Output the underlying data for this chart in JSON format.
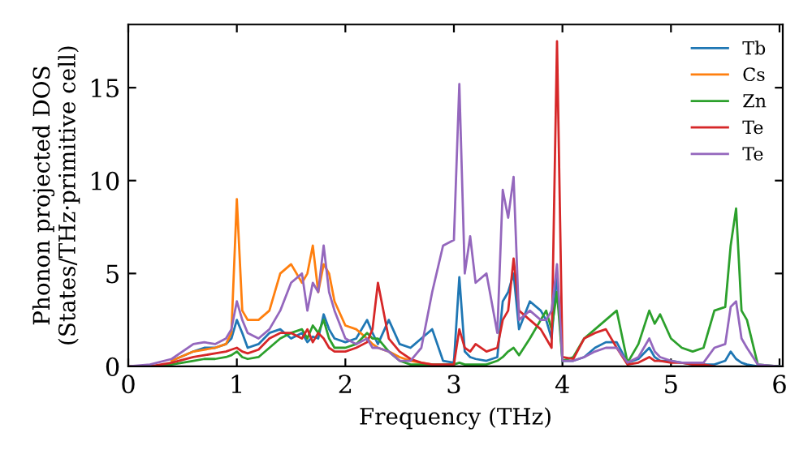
{
  "chart_data": {
    "type": "line",
    "xlabel": "Frequency (THz)",
    "ylabel": "Phonon projected DOS\n(States/THz·primitive cell)",
    "x": [
      0,
      0.2,
      0.4,
      0.6,
      0.7,
      0.8,
      0.9,
      0.95,
      1.0,
      1.05,
      1.1,
      1.2,
      1.3,
      1.4,
      1.5,
      1.6,
      1.65,
      1.7,
      1.75,
      1.8,
      1.85,
      1.9,
      2.0,
      2.1,
      2.2,
      2.25,
      2.3,
      2.4,
      2.5,
      2.6,
      2.7,
      2.8,
      2.9,
      3.0,
      3.05,
      3.1,
      3.15,
      3.2,
      3.3,
      3.4,
      3.45,
      3.5,
      3.55,
      3.6,
      3.7,
      3.8,
      3.85,
      3.9,
      3.95,
      4.0,
      4.1,
      4.2,
      4.3,
      4.4,
      4.5,
      4.6,
      4.7,
      4.8,
      4.85,
      4.9,
      5.0,
      5.1,
      5.2,
      5.3,
      5.4,
      5.5,
      5.55,
      5.6,
      5.65,
      5.7,
      5.8,
      6.0
    ],
    "series": [
      {
        "name": "Tb",
        "color": "#1f77b4",
        "values": [
          null,
          null,
          0.3,
          0.8,
          1.0,
          1.0,
          1.2,
          1.5,
          2.5,
          1.8,
          1.0,
          1.2,
          1.8,
          2.0,
          1.5,
          1.8,
          1.3,
          1.6,
          1.5,
          2.8,
          2.0,
          1.5,
          1.3,
          1.5,
          2.5,
          1.8,
          1.2,
          2.5,
          1.2,
          1.0,
          1.5,
          2.0,
          0.3,
          0.2,
          4.8,
          0.8,
          0.5,
          0.4,
          0.3,
          0.5,
          3.5,
          4.0,
          5.0,
          2.0,
          3.5,
          3.0,
          2.5,
          1.5,
          5.0,
          0.3,
          0.3,
          0.5,
          1.0,
          1.3,
          1.3,
          0.2,
          0.4,
          1.0,
          0.5,
          0.3,
          0.3,
          0.2,
          0.1,
          0.1,
          0.1,
          0.3,
          0.8,
          0.4,
          0.2,
          0.1,
          0,
          0
        ]
      },
      {
        "name": "Cs",
        "color": "#ff7f0e",
        "values": [
          null,
          null,
          0.3,
          0.8,
          0.9,
          1.0,
          1.2,
          1.8,
          9.0,
          3.0,
          2.5,
          2.5,
          3.0,
          5.0,
          5.5,
          4.5,
          5.0,
          6.5,
          4.0,
          5.5,
          5.0,
          3.5,
          2.2,
          2.0,
          1.5,
          1.2,
          1.0,
          0.8,
          0.5,
          0.3,
          0.2,
          0.1,
          null,
          null,
          null,
          null,
          null,
          null,
          null,
          null,
          null,
          null,
          null,
          null,
          null,
          null,
          null,
          null,
          null,
          null,
          null,
          null,
          null,
          null,
          null,
          null,
          null,
          null,
          null,
          null,
          null,
          null,
          null,
          null,
          null,
          null,
          null,
          null,
          null,
          null,
          null,
          null
        ]
      },
      {
        "name": "Zn",
        "color": "#2ca02c",
        "values": [
          0,
          0,
          0.1,
          0.3,
          0.4,
          0.4,
          0.5,
          0.6,
          0.8,
          0.5,
          0.4,
          0.5,
          1.0,
          1.5,
          1.8,
          2.0,
          1.5,
          2.2,
          1.8,
          2.5,
          1.5,
          1.0,
          1.0,
          1.2,
          1.8,
          1.5,
          1.5,
          0.8,
          0.3,
          0.1,
          0.1,
          0.1,
          0.1,
          0.1,
          0.2,
          0.1,
          0.1,
          0.1,
          0.1,
          0.3,
          0.5,
          0.8,
          1.0,
          0.6,
          1.5,
          2.5,
          3.0,
          2.0,
          4.0,
          0.3,
          0.5,
          1.5,
          2.0,
          2.5,
          3.0,
          0.2,
          1.2,
          3.0,
          2.3,
          2.8,
          1.5,
          1.0,
          0.8,
          1.0,
          3.0,
          3.2,
          6.5,
          8.5,
          3.0,
          2.5,
          0.1,
          0
        ]
      },
      {
        "name": "Te",
        "color": "#d62728",
        "values": [
          0,
          0,
          0.2,
          0.5,
          0.6,
          0.7,
          0.8,
          0.9,
          1.0,
          0.8,
          0.7,
          0.9,
          1.5,
          1.8,
          1.8,
          1.5,
          2.0,
          1.3,
          1.8,
          1.5,
          1.0,
          0.8,
          0.8,
          1.0,
          1.3,
          2.0,
          4.5,
          1.5,
          0.8,
          0.4,
          0.2,
          0.1,
          0.1,
          0.1,
          2.0,
          1.0,
          0.8,
          1.2,
          0.8,
          1.0,
          2.5,
          3.0,
          5.8,
          3.0,
          2.5,
          2.0,
          1.5,
          1.0,
          17.5,
          0.5,
          0.4,
          1.5,
          1.8,
          2.0,
          1.0,
          0.1,
          0.2,
          0.5,
          0.3,
          0.3,
          0.2,
          0.2,
          0.1,
          0.1,
          0,
          null,
          null,
          null,
          null,
          null,
          null,
          null
        ]
      },
      {
        "name": "Te",
        "color": "#9467bd",
        "values": [
          0,
          0.1,
          0.4,
          1.2,
          1.3,
          1.2,
          1.5,
          2.0,
          3.5,
          2.5,
          1.8,
          1.5,
          2.0,
          3.0,
          4.5,
          5.0,
          3.0,
          4.5,
          4.0,
          6.5,
          4.0,
          3.0,
          1.5,
          1.2,
          1.5,
          1.0,
          1.0,
          0.8,
          0.3,
          0.3,
          1.0,
          4.0,
          6.5,
          6.8,
          15.2,
          5.0,
          7.0,
          4.5,
          5.0,
          1.8,
          9.5,
          8.0,
          10.2,
          2.5,
          3.0,
          2.5,
          2.5,
          3.0,
          5.5,
          0.3,
          0.3,
          0.5,
          0.8,
          1.0,
          1.0,
          0.2,
          0.5,
          1.5,
          0.8,
          0.5,
          0.3,
          0.2,
          0.2,
          0.2,
          1.0,
          1.2,
          3.2,
          3.5,
          1.5,
          1.0,
          0.1,
          0
        ]
      }
    ],
    "xlim": [
      0,
      6.03
    ],
    "xticks": [
      0,
      1,
      2,
      3,
      4,
      5,
      6
    ],
    "ylim": [
      0,
      18.4
    ],
    "yticks": [
      0,
      5,
      10,
      15
    ],
    "legend": "top right",
    "grid": false
  }
}
